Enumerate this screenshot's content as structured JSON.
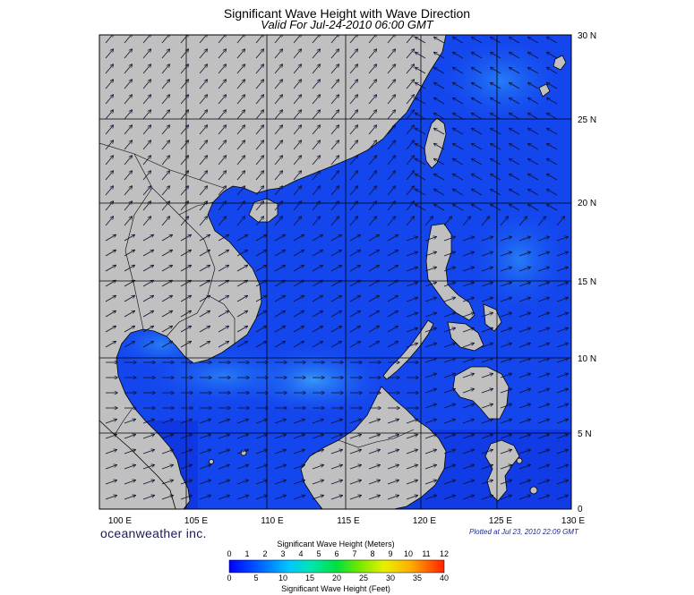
{
  "header": {
    "title": "Significant Wave Height with Wave Direction",
    "subtitle": "Valid For Jul-24-2010 06:00 GMT"
  },
  "map": {
    "lon_labels": [
      "100 E",
      "105 E",
      "110 E",
      "115 E",
      "120 E",
      "125 E",
      "130 E"
    ],
    "lat_labels": [
      "30 N",
      "25 N",
      "20 N",
      "15 N",
      "10 N",
      "5 N",
      "0"
    ],
    "lon_range": [
      99,
      130
    ],
    "lat_range": [
      0,
      30
    ],
    "land_color": "#c0c0c0",
    "ocean_color": "#1446ee"
  },
  "footer": {
    "brand": "oceanweather inc.",
    "plotted": "Plotted at Jul 23, 2010 22:09 GMT"
  },
  "legend": {
    "title_meters": "Significant Wave Height (Meters)",
    "title_feet": "Significant Wave Height (Feet)",
    "meter_ticks": [
      "0",
      "1",
      "2",
      "3",
      "4",
      "5",
      "6",
      "7",
      "8",
      "9",
      "10",
      "11",
      "12"
    ],
    "feet_ticks": [
      "0",
      "5",
      "10",
      "15",
      "20",
      "25",
      "30",
      "35",
      "40"
    ],
    "colors": [
      "#0000ff",
      "#0070ff",
      "#00c0ff",
      "#00e0c0",
      "#00e060",
      "#40e000",
      "#a0f000",
      "#f0f000",
      "#ffc000",
      "#ff7000",
      "#ff2000"
    ]
  }
}
